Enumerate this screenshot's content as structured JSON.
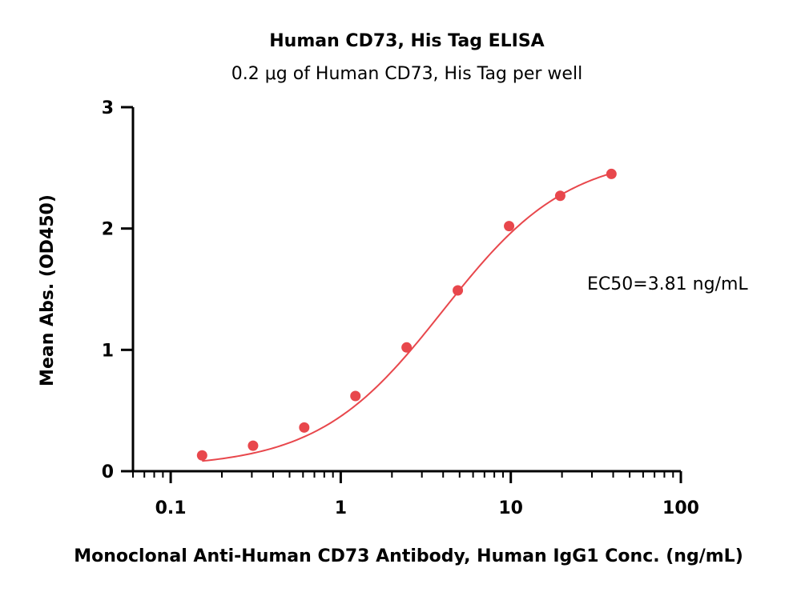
{
  "chart_data": {
    "type": "scatter",
    "title": "Human CD73, His Tag ELISA",
    "subtitle": "0.2 μg of Human CD73, His Tag per well",
    "xlabel": "Monoclonal Anti-Human CD73 Antibody, Human IgG1 Conc. (ng/mL)",
    "ylabel": "Mean Abs. (OD450)",
    "x_scale": "log",
    "xlim": [
      0.06,
      100
    ],
    "ylim": [
      0,
      3
    ],
    "x_ticks": [
      0.1,
      1,
      10,
      100
    ],
    "x_tick_labels": [
      "0.1",
      "1",
      "10",
      "100"
    ],
    "y_ticks": [
      0,
      1,
      2,
      3
    ],
    "y_tick_labels": [
      "0",
      "1",
      "2",
      "3"
    ],
    "grid": false,
    "series": [
      {
        "x": [
          0.153,
          0.305,
          0.61,
          1.22,
          2.44,
          4.88,
          9.77,
          19.53,
          39.06
        ],
        "y": [
          0.13,
          0.21,
          0.36,
          0.62,
          1.02,
          1.49,
          2.02,
          2.27,
          2.45
        ],
        "fit": "four-parameter logistic"
      }
    ],
    "annotations": [
      {
        "text": "EC50=3.81 ng/mL"
      }
    ],
    "colors": {
      "series": "#e8474c",
      "axis": "#000000"
    }
  }
}
